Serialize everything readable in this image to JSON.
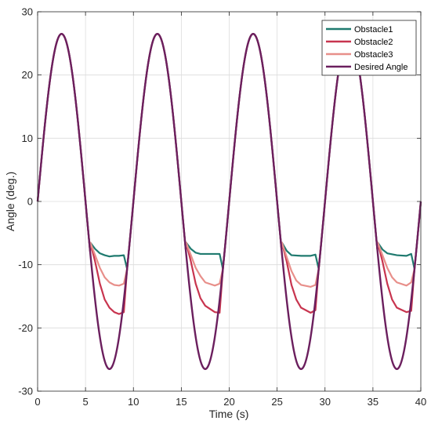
{
  "chart_data": {
    "type": "line",
    "xlabel": "Time (s)",
    "ylabel": "Angle (deg.)",
    "xlim": [
      0,
      40
    ],
    "ylim": [
      -30,
      30
    ],
    "xticks": [
      0,
      5,
      10,
      15,
      20,
      25,
      30,
      35,
      40
    ],
    "yticks": [
      -30,
      -20,
      -10,
      0,
      10,
      20,
      30
    ],
    "grid": true,
    "legend_position": "top-right",
    "reference": {
      "name": "Desired Angle",
      "amplitude": 26.5,
      "period_s": 10,
      "phase_s": 0,
      "color": "#6b1f5e"
    },
    "series": [
      {
        "name": "Obstacle1",
        "color": "#1f7a6f",
        "points": [
          [
            5.5,
            -6.5
          ],
          [
            6.0,
            -7.5
          ],
          [
            6.5,
            -8.2
          ],
          [
            7.0,
            -8.5
          ],
          [
            7.5,
            -8.7
          ],
          [
            8.0,
            -8.6
          ],
          [
            8.5,
            -8.6
          ],
          [
            9.0,
            -8.5
          ],
          [
            15.5,
            -6.5
          ],
          [
            16.0,
            -7.5
          ],
          [
            16.5,
            -8.1
          ],
          [
            17.0,
            -8.3
          ],
          [
            18.0,
            -8.3
          ],
          [
            19.0,
            -8.3
          ],
          [
            25.5,
            -6.5
          ],
          [
            26.0,
            -7.8
          ],
          [
            26.5,
            -8.5
          ],
          [
            27.5,
            -8.6
          ],
          [
            28.5,
            -8.6
          ],
          [
            29.0,
            -8.4
          ],
          [
            35.5,
            -6.5
          ],
          [
            36.0,
            -7.6
          ],
          [
            36.5,
            -8.2
          ],
          [
            37.5,
            -8.5
          ],
          [
            38.5,
            -8.6
          ],
          [
            39.0,
            -8.3
          ]
        ]
      },
      {
        "name": "Obstacle2",
        "color": "#c8354f",
        "points": [
          [
            5.5,
            -6.5
          ],
          [
            6.0,
            -9.5
          ],
          [
            6.5,
            -13.0
          ],
          [
            7.0,
            -15.5
          ],
          [
            7.5,
            -16.8
          ],
          [
            8.0,
            -17.5
          ],
          [
            8.5,
            -17.8
          ],
          [
            9.0,
            -17.5
          ],
          [
            15.5,
            -6.5
          ],
          [
            16.0,
            -9.5
          ],
          [
            16.5,
            -13.0
          ],
          [
            17.0,
            -15.3
          ],
          [
            17.5,
            -16.5
          ],
          [
            18.5,
            -17.5
          ],
          [
            19.0,
            -17.6
          ],
          [
            25.5,
            -6.5
          ],
          [
            26.0,
            -9.5
          ],
          [
            26.5,
            -13.2
          ],
          [
            27.0,
            -15.5
          ],
          [
            27.5,
            -16.8
          ],
          [
            28.5,
            -17.6
          ],
          [
            29.0,
            -17.2
          ],
          [
            35.5,
            -6.5
          ],
          [
            36.0,
            -9.5
          ],
          [
            36.5,
            -13.0
          ],
          [
            37.0,
            -15.5
          ],
          [
            37.5,
            -16.8
          ],
          [
            38.5,
            -17.5
          ],
          [
            39.0,
            -17.3
          ]
        ]
      },
      {
        "name": "Obstacle3",
        "color": "#e88f8a",
        "points": [
          [
            5.5,
            -6.5
          ],
          [
            6.0,
            -8.5
          ],
          [
            6.5,
            -10.5
          ],
          [
            7.0,
            -12.0
          ],
          [
            7.5,
            -12.8
          ],
          [
            8.0,
            -13.2
          ],
          [
            8.5,
            -13.3
          ],
          [
            9.0,
            -13.0
          ],
          [
            15.5,
            -6.5
          ],
          [
            16.0,
            -8.5
          ],
          [
            16.5,
            -10.5
          ],
          [
            17.0,
            -11.8
          ],
          [
            17.5,
            -12.8
          ],
          [
            18.5,
            -13.3
          ],
          [
            19.0,
            -13.0
          ],
          [
            25.5,
            -6.5
          ],
          [
            26.0,
            -8.8
          ],
          [
            26.5,
            -11.0
          ],
          [
            27.0,
            -12.5
          ],
          [
            27.5,
            -13.2
          ],
          [
            28.5,
            -13.5
          ],
          [
            29.0,
            -13.2
          ],
          [
            35.5,
            -6.5
          ],
          [
            36.0,
            -8.5
          ],
          [
            36.5,
            -10.5
          ],
          [
            37.0,
            -12.0
          ],
          [
            37.5,
            -12.8
          ],
          [
            38.5,
            -13.3
          ],
          [
            39.0,
            -12.8
          ]
        ]
      }
    ]
  }
}
